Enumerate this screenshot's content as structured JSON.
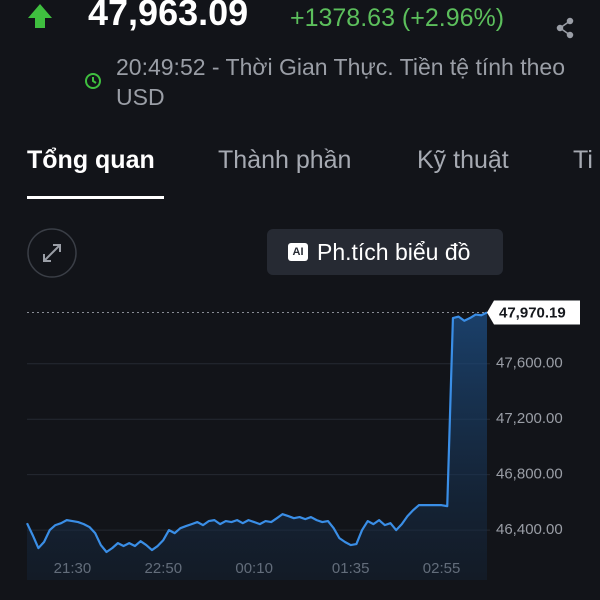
{
  "header": {
    "price": "47,963.09",
    "change": "+1378.63 (+2.96%)",
    "time_note": "20:49:52 - Thời Gian Thực. Tiền tệ tính theo USD"
  },
  "tabs": [
    "Tổng quan",
    "Thành phần",
    "Kỹ thuật",
    "Ti"
  ],
  "ai_button": {
    "badge": "AI",
    "label": "Ph.tích biểu đồ"
  },
  "chart_data": {
    "type": "area",
    "categories": [
      null,
      null,
      null,
      null,
      null,
      null,
      null,
      null,
      "21:30",
      null,
      null,
      null,
      null,
      null,
      null,
      null,
      null,
      null,
      null,
      null,
      null,
      null,
      null,
      null,
      "22:50",
      null,
      null,
      null,
      null,
      null,
      null,
      null,
      null,
      null,
      null,
      null,
      null,
      null,
      null,
      null,
      "00:10",
      null,
      null,
      null,
      null,
      null,
      null,
      null,
      null,
      null,
      null,
      null,
      null,
      null,
      null,
      null,
      null,
      "01:35",
      null,
      null,
      null,
      null,
      null,
      null,
      null,
      null,
      null,
      null,
      null,
      null,
      null,
      null,
      null,
      "02:55",
      null,
      null,
      null,
      null,
      null,
      null,
      null,
      null
    ],
    "values": [
      46450,
      46364,
      46270,
      46314,
      46400,
      46436,
      46450,
      46472,
      46465,
      46458,
      46443,
      46422,
      46378,
      46292,
      46242,
      46270,
      46306,
      46285,
      46306,
      46285,
      46320,
      46292,
      46256,
      46285,
      46328,
      46400,
      46378,
      46414,
      46429,
      46443,
      46458,
      46436,
      46465,
      46472,
      46443,
      46465,
      46458,
      46472,
      46450,
      46472,
      46458,
      46443,
      46465,
      46458,
      46486,
      46515,
      46501,
      46486,
      46494,
      46479,
      46494,
      46472,
      46458,
      46465,
      46414,
      46342,
      46314,
      46292,
      46299,
      46400,
      46465,
      46443,
      46472,
      46436,
      46450,
      46400,
      46443,
      46501,
      46544,
      46580,
      46580,
      46580,
      46580,
      46580,
      46573,
      47930,
      47940,
      47910,
      47930,
      47955,
      47950,
      47970.19
    ],
    "last_label": "47,970.19",
    "color": "#3a8ee6",
    "ylim": [
      46040,
      48060
    ],
    "yticks": [
      {
        "value": 46400,
        "label": "46,400.00"
      },
      {
        "value": 46800,
        "label": "46,800.00"
      },
      {
        "value": 47200,
        "label": "47,200.00"
      },
      {
        "value": 47600,
        "label": "47,600.00"
      }
    ],
    "grid": true
  }
}
